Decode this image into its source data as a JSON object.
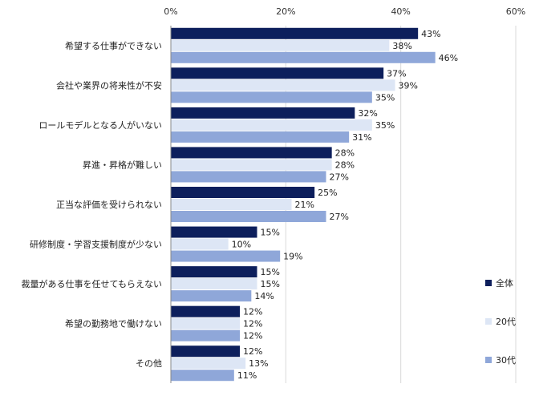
{
  "chart_data": {
    "type": "bar",
    "orientation": "horizontal",
    "categories": [
      "希望する仕事ができない",
      "会社や業界の将来性が不安",
      "ロールモデルとなる人がいない",
      "昇進・昇格が難しい",
      "正当な評価を受けられない",
      "研修制度・学習支援制度が少ない",
      "裁量がある仕事を任せてもらえない",
      "希望の勤務地で働けない",
      "その他"
    ],
    "series": [
      {
        "name": "全体",
        "color": "#0d1f5c",
        "values": [
          43,
          37,
          32,
          28,
          25,
          15,
          15,
          12,
          12
        ]
      },
      {
        "name": "20代",
        "color": "#dde6f5",
        "values": [
          38,
          39,
          35,
          28,
          21,
          10,
          15,
          12,
          13
        ]
      },
      {
        "name": "30代",
        "color": "#8fa7d9",
        "values": [
          46,
          35,
          31,
          27,
          27,
          19,
          14,
          12,
          11
        ]
      }
    ],
    "xlim": [
      0,
      60
    ],
    "x_ticks": [
      "0%",
      "20%",
      "40%",
      "60%"
    ],
    "x_tick_values": [
      0,
      20,
      40,
      60
    ],
    "value_suffix": "%",
    "legend_position": "right-bottom",
    "grid": true
  }
}
